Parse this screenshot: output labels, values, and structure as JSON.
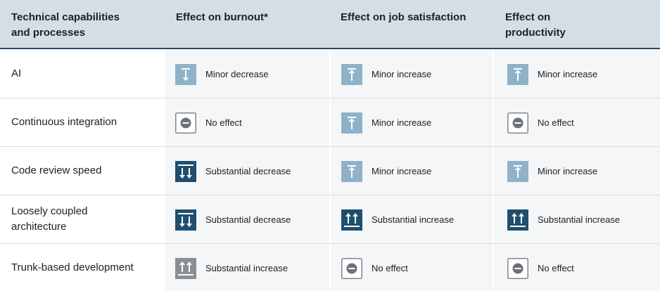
{
  "header": {
    "col1": [
      "Technical capabilities",
      "and processes"
    ],
    "col2": "Effect on burnout*",
    "col3": "Effect on job satisfaction",
    "col4": [
      "Effect on",
      "productivity"
    ]
  },
  "icon_colors": {
    "minor": "#8fb2c8",
    "substantial": "#1f4e6e",
    "substantial_increase_burnout": "#8a8f94",
    "no_effect_border": "#80868b",
    "no_effect_fill": "#6d7277"
  },
  "rows": [
    {
      "label": [
        "AI"
      ],
      "burnout": {
        "icon": "minor-decrease-icon",
        "text": "Minor decrease"
      },
      "satisfaction": {
        "icon": "minor-increase-icon",
        "text": "Minor increase"
      },
      "productivity": {
        "icon": "minor-increase-icon",
        "text": "Minor increase"
      }
    },
    {
      "label": [
        "Continuous integration"
      ],
      "burnout": {
        "icon": "no-effect-icon",
        "text": "No effect"
      },
      "satisfaction": {
        "icon": "minor-increase-icon",
        "text": "Minor increase"
      },
      "productivity": {
        "icon": "no-effect-icon",
        "text": "No effect"
      }
    },
    {
      "label": [
        "Code review speed"
      ],
      "burnout": {
        "icon": "substantial-decrease-icon",
        "text": "Substantial decrease"
      },
      "satisfaction": {
        "icon": "minor-increase-icon",
        "text": "Minor increase"
      },
      "productivity": {
        "icon": "minor-increase-icon",
        "text": "Minor increase"
      }
    },
    {
      "label": [
        "Loosely coupled",
        "architecture"
      ],
      "burnout": {
        "icon": "substantial-decrease-icon",
        "text": "Substantial decrease"
      },
      "satisfaction": {
        "icon": "substantial-increase-icon",
        "text": "Substantial increase"
      },
      "productivity": {
        "icon": "substantial-increase-icon",
        "text": "Substantial increase"
      }
    },
    {
      "label": [
        "Trunk-based development"
      ],
      "burnout": {
        "icon": "substantial-increase-gray-icon",
        "text": "Substantial increase"
      },
      "satisfaction": {
        "icon": "no-effect-icon",
        "text": "No effect"
      },
      "productivity": {
        "icon": "no-effect-icon",
        "text": "No effect"
      }
    }
  ]
}
